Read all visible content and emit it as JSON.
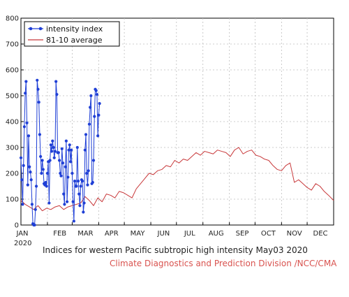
{
  "chart_data": {
    "type": "line",
    "title": "",
    "caption": "Indices for western Pacific subtropic high intensity May03 2020",
    "credit": "Climate Diagnostics and Prediction Division /NCC/CMA",
    "xlabel": "",
    "ylabel": "",
    "year_label": "2020",
    "ylim": [
      0,
      800
    ],
    "yticks": [
      0,
      100,
      200,
      300,
      400,
      500,
      600,
      700,
      800
    ],
    "xlim_days": [
      0,
      366
    ],
    "month_labels": [
      "JAN",
      "FEB",
      "MAR",
      "APR",
      "MAY",
      "JUN",
      "JUL",
      "AUG",
      "SEP",
      "OCT",
      "NOV",
      "DEC"
    ],
    "month_start_days": [
      0,
      31,
      60,
      91,
      121,
      152,
      182,
      213,
      244,
      274,
      305,
      335
    ],
    "grid": true,
    "legend_position": "top-left",
    "series": [
      {
        "name": "intensity index",
        "color": "#1f3fd6",
        "marker": "circle",
        "values": [
          260,
          175,
          80,
          230,
          380,
          510,
          555,
          395,
          155,
          345,
          225,
          205,
          175,
          80,
          5,
          0,
          0,
          60,
          150,
          560,
          525,
          475,
          350,
          265,
          200,
          250,
          215,
          160,
          155,
          165,
          150,
          200,
          245,
          85,
          250,
          310,
          285,
          325,
          300,
          260,
          285,
          555,
          505,
          280,
          280,
          250,
          200,
          190,
          295,
          240,
          120,
          80,
          225,
          325,
          90,
          185,
          290,
          310,
          245,
          290,
          200,
          90,
          15,
          170,
          150,
          150,
          300,
          170,
          120,
          75,
          150,
          175,
          170,
          50,
          85,
          290,
          350,
          200,
          155,
          210,
          390,
          455,
          500,
          160,
          165,
          250,
          420,
          525,
          520,
          505,
          345,
          425,
          470
        ]
      },
      {
        "name": "81-10 average",
        "color": "#c8383a",
        "x_days": [
          0,
          5,
          10,
          15,
          20,
          25,
          30,
          35,
          40,
          45,
          50,
          55,
          60,
          65,
          70,
          75,
          80,
          85,
          90,
          95,
          100,
          105,
          110,
          115,
          120,
          125,
          130,
          135,
          140,
          145,
          150,
          155,
          160,
          165,
          170,
          175,
          180,
          185,
          190,
          195,
          200,
          205,
          210,
          215,
          220,
          225,
          230,
          235,
          240,
          245,
          250,
          255,
          260,
          265,
          270,
          275,
          280,
          285,
          290,
          295,
          300,
          305,
          310,
          315,
          320,
          325,
          330,
          335,
          340,
          345,
          350,
          355,
          360,
          366
        ],
        "values": [
          95,
          80,
          70,
          60,
          75,
          55,
          65,
          60,
          70,
          75,
          60,
          70,
          75,
          80,
          85,
          110,
          95,
          75,
          105,
          90,
          120,
          115,
          105,
          130,
          125,
          115,
          105,
          140,
          160,
          180,
          200,
          195,
          210,
          215,
          230,
          225,
          250,
          240,
          255,
          250,
          265,
          280,
          270,
          285,
          280,
          275,
          290,
          285,
          280,
          265,
          290,
          300,
          275,
          285,
          290,
          270,
          265,
          255,
          250,
          230,
          215,
          210,
          230,
          240,
          165,
          175,
          160,
          145,
          135,
          160,
          150,
          130,
          115,
          95
        ]
      }
    ]
  }
}
